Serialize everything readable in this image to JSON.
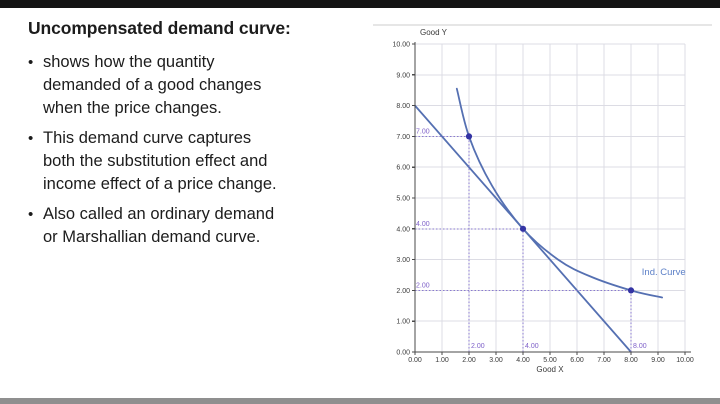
{
  "page": {
    "background": "#ffffff",
    "top_bar_color": "#141414",
    "bottom_bar_color": "#8f8f8f"
  },
  "content": {
    "title": "Uncompensated demand curve:",
    "bullet_char": "•",
    "bullets": [
      {
        "lines": [
          "shows how the quantity",
          "demanded of a good changes",
          "when the price changes."
        ]
      },
      {
        "lines": [
          "This demand curve captures",
          "both the substitution effect and",
          "income effect of a price change."
        ]
      },
      {
        "lines": [
          "Also called an ordinary demand",
          "or Marshallian demand curve."
        ]
      }
    ]
  },
  "chart_data": {
    "type": "line",
    "title": "",
    "xlabel": "Good X",
    "ylabel": "Good Y",
    "xlim": [
      0,
      10
    ],
    "ylim": [
      0,
      10
    ],
    "grid": true,
    "xtick_values": [
      0,
      1,
      2,
      3,
      4,
      5,
      6,
      7,
      8,
      9,
      10
    ],
    "xticks": [
      "0.00",
      "1.00",
      "2.00",
      "3.00",
      "4.00",
      "5.00",
      "6.00",
      "7.00",
      "8.00",
      "9.00",
      "10.00"
    ],
    "ytick_values": [
      0,
      1,
      2,
      3,
      4,
      5,
      6,
      7,
      8,
      9,
      10
    ],
    "yticks": [
      "0.00",
      "1.00",
      "2.00",
      "3.00",
      "4.00",
      "5.00",
      "6.00",
      "7.00",
      "8.00",
      "9.00",
      "10.00"
    ],
    "series": [
      {
        "name": "budget-line",
        "shape": "straight",
        "color": "#5570b2",
        "width": 1.8,
        "points": [
          [
            0,
            8
          ],
          [
            8,
            0
          ]
        ]
      },
      {
        "name": "indifference-curve",
        "shape": "smooth",
        "color": "#5570b2",
        "width": 1.8,
        "points": [
          [
            1.55,
            8.55
          ],
          [
            2,
            7
          ],
          [
            2.85,
            5.4
          ],
          [
            4,
            4
          ],
          [
            5.3,
            3.0
          ],
          [
            6.5,
            2.45
          ],
          [
            8,
            2
          ],
          [
            9.15,
            1.77
          ]
        ]
      }
    ],
    "markers": {
      "color": "#3434a4",
      "points": [
        [
          2,
          7
        ],
        [
          4,
          4
        ],
        [
          8,
          2
        ]
      ],
      "labels_y": [
        "7.00",
        "4.00",
        "2.00"
      ],
      "labels_x": [
        "2.00",
        "4.00",
        "8.00"
      ]
    },
    "annotation": {
      "text": "Ind. Curve",
      "x": 8.4,
      "y": 2.5,
      "color": "#5b7fc7"
    },
    "colors": {
      "grid": "#dcdce4",
      "axis": "#4a4a4a",
      "tick_label": "#3a3a3a",
      "guide": "#8a7ad0",
      "guide_label": "#7d5fc8",
      "panel_border": "#cccccc"
    }
  }
}
